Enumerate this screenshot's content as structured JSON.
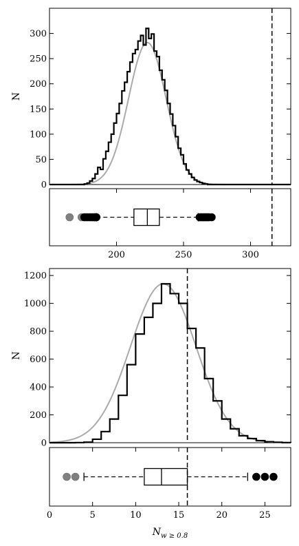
{
  "chart_data": [
    {
      "type": "bar",
      "panel": "top-histogram",
      "ylabel": "N",
      "xlim": [
        150,
        330
      ],
      "ylim": [
        0,
        350
      ],
      "yticks": [
        0,
        50,
        100,
        150,
        200,
        250,
        300
      ],
      "bin_width": 2,
      "bin_start": 150,
      "histogram": [
        0,
        0,
        0,
        0,
        0,
        0,
        0,
        0,
        0,
        0,
        0,
        0,
        0,
        1,
        3,
        7,
        12,
        21,
        34,
        30,
        51,
        66,
        84,
        100,
        122,
        141,
        161,
        186,
        203,
        224,
        243,
        260,
        268,
        285,
        296,
        277,
        310,
        290,
        299,
        265,
        254,
        227,
        208,
        187,
        161,
        140,
        117,
        95,
        72,
        59,
        41,
        29,
        21,
        14,
        9,
        6,
        4,
        2,
        1,
        0,
        0,
        0,
        0,
        0,
        0,
        0,
        0,
        0,
        0,
        0,
        0,
        0,
        0,
        0,
        0,
        0,
        0,
        0,
        0,
        0,
        0,
        0,
        0,
        0,
        0,
        0,
        0,
        0,
        0,
        0
      ],
      "fit": {
        "mean": 223,
        "sigma": 14,
        "peak": 282
      },
      "vline": 316,
      "grid": false,
      "legend": "none"
    },
    {
      "type": "box",
      "panel": "top-boxplot",
      "xlim": [
        150,
        330
      ],
      "xticks": [
        200,
        250,
        300
      ],
      "q1": 213,
      "median": 223,
      "q3": 232,
      "whisker_low": 185,
      "whisker_high": 261,
      "outliers_grey": [
        165,
        174,
        177,
        179,
        181,
        183,
        184
      ],
      "outliers_black": [
        176,
        178,
        180,
        182,
        184,
        185,
        262,
        263,
        264,
        265,
        266,
        267,
        268,
        269,
        271
      ],
      "vline": 316
    },
    {
      "type": "bar",
      "panel": "bottom-histogram",
      "ylabel": "N",
      "xlim": [
        0,
        28
      ],
      "ylim": [
        0,
        1250
      ],
      "yticks": [
        0,
        200,
        400,
        600,
        800,
        1000,
        1200
      ],
      "bin_width": 1,
      "bin_start": 0,
      "histogram": [
        0,
        0,
        0,
        1,
        4,
        25,
        80,
        170,
        340,
        560,
        780,
        900,
        1000,
        1140,
        1070,
        1000,
        820,
        680,
        460,
        300,
        170,
        100,
        50,
        30,
        15,
        7,
        3,
        1
      ],
      "fit": {
        "mean": 13.2,
        "sigma": 3.8,
        "peak": 1140
      },
      "vline": 16,
      "grid": false,
      "legend": "none"
    },
    {
      "type": "box",
      "panel": "bottom-boxplot",
      "xlabel_base": "N",
      "xlabel_sub": "w ≥ 0.8",
      "xlim": [
        0,
        28
      ],
      "xticks": [
        0,
        5,
        10,
        15,
        20,
        25
      ],
      "q1": 11,
      "median": 13,
      "q3": 16,
      "whisker_low": 4,
      "whisker_high": 23,
      "outliers_grey": [
        2,
        3
      ],
      "outliers_black": [
        24,
        25,
        26
      ],
      "vline": 16
    }
  ]
}
